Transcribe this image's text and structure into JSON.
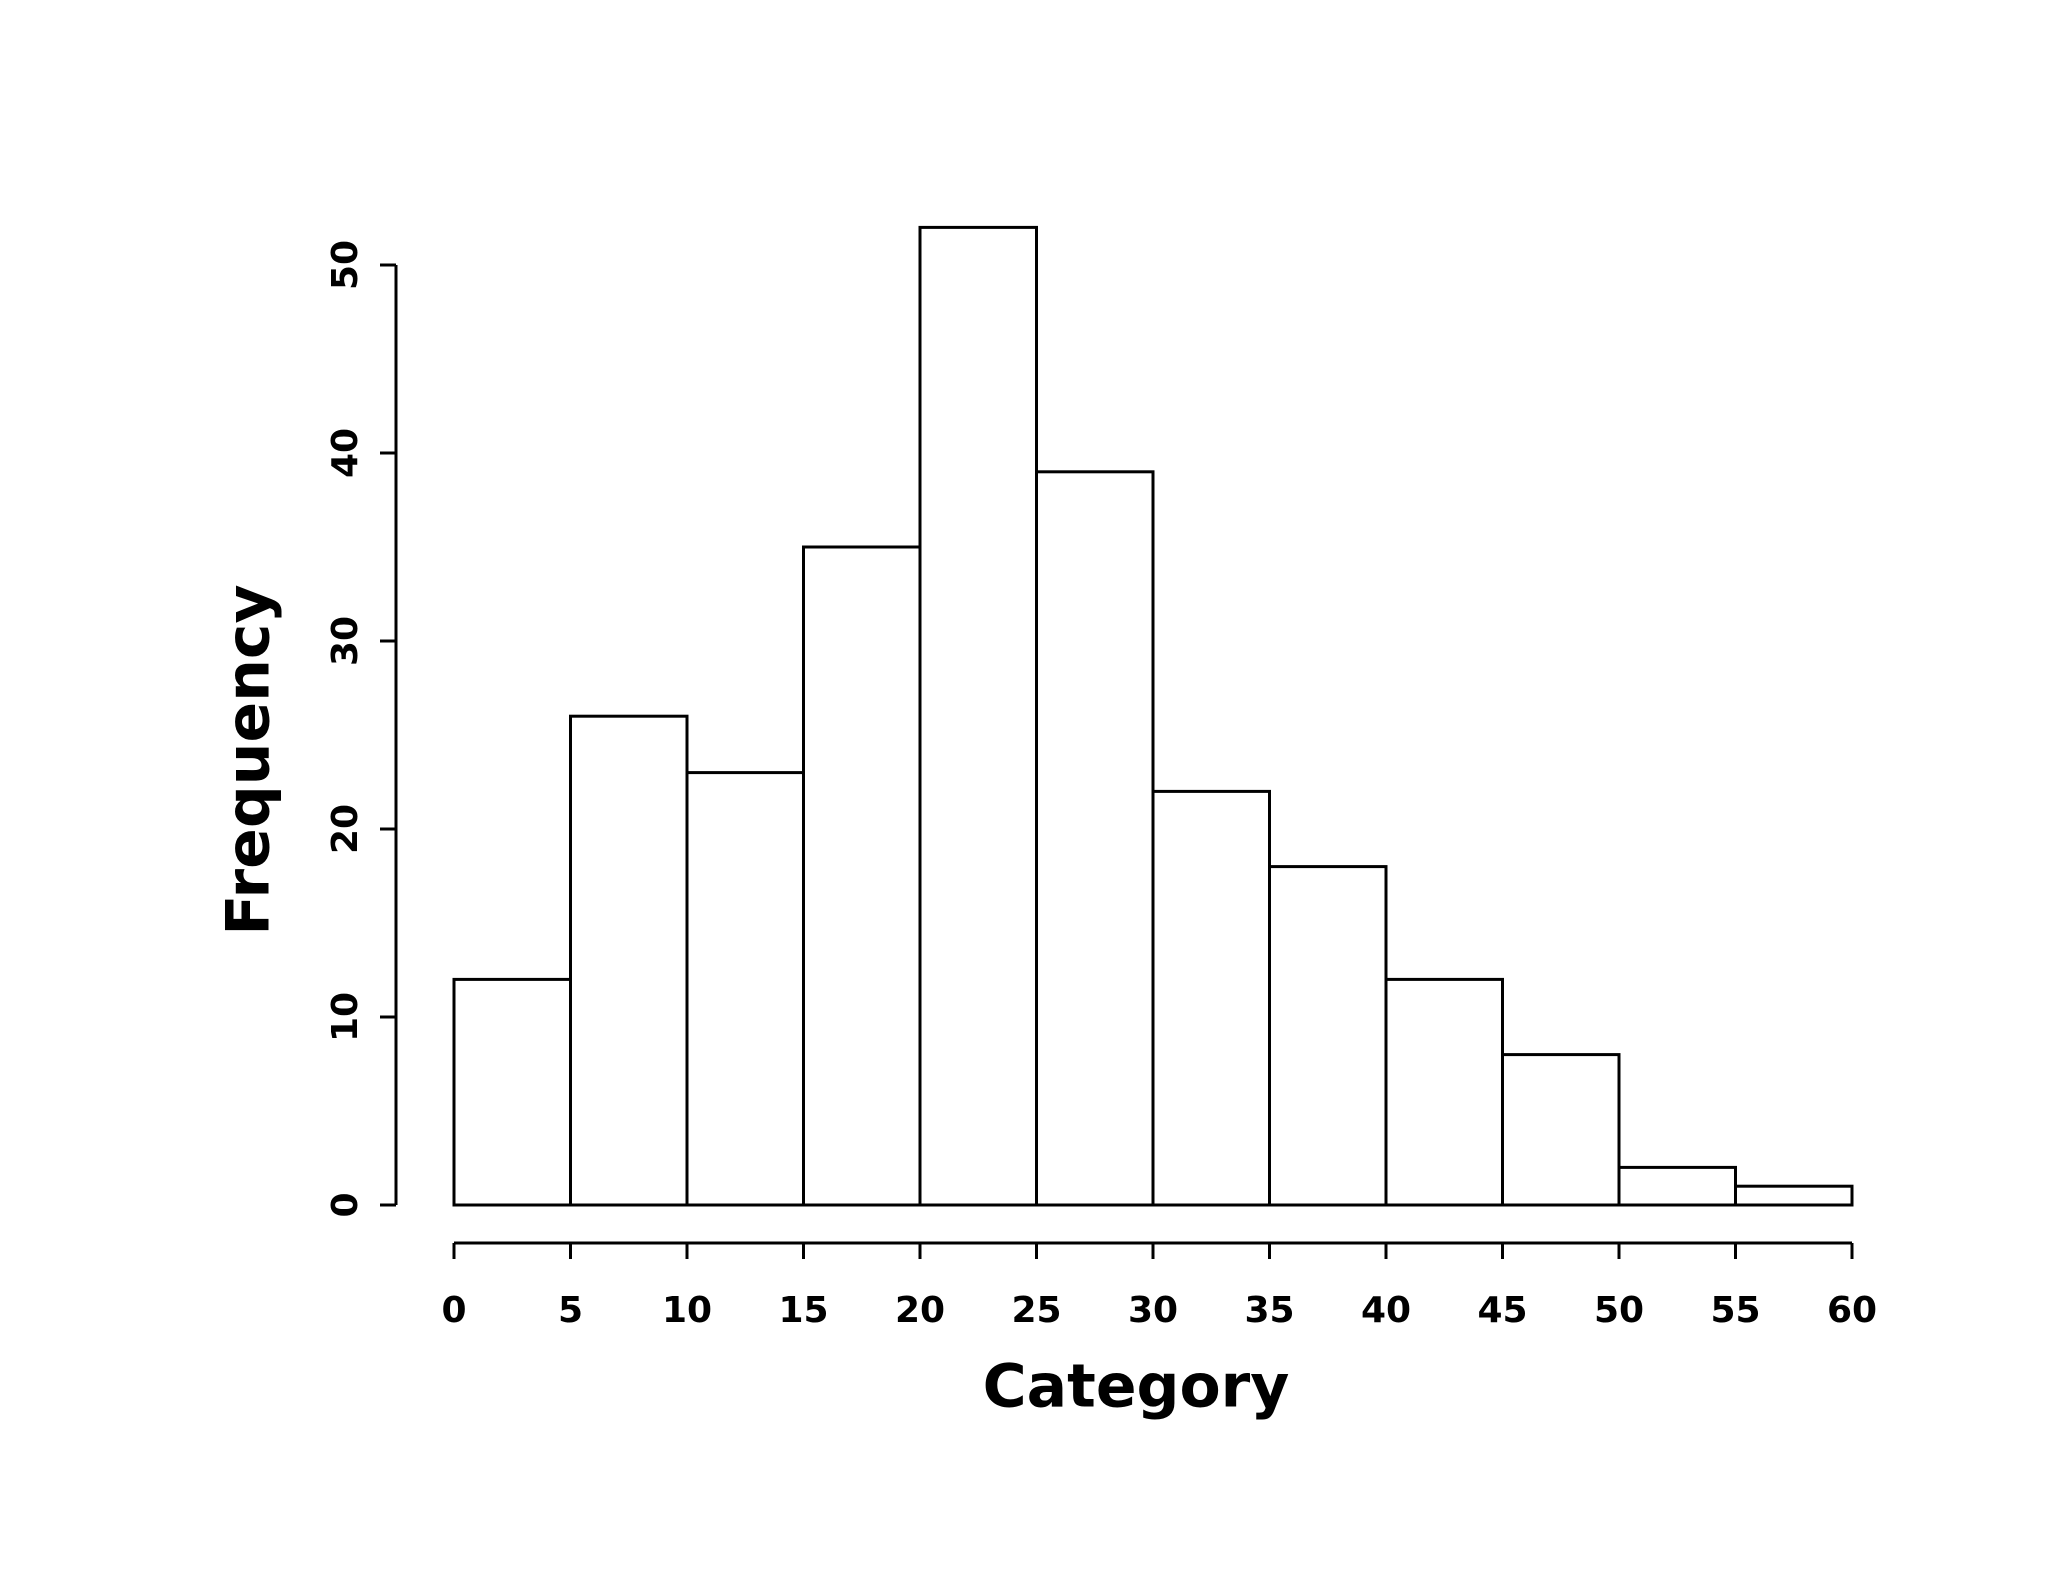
{
  "chart_data": {
    "type": "histogram",
    "x_label": "Category",
    "y_label": "Frequency",
    "bins": [
      0,
      5,
      10,
      15,
      20,
      25,
      30,
      35,
      40,
      45,
      50,
      55,
      60
    ],
    "values": [
      12,
      26,
      23,
      35,
      52,
      39,
      22,
      18,
      12,
      8,
      2,
      1
    ],
    "color": "#ffffff",
    "edge_color": "#000000",
    "xlim": [
      0,
      60
    ],
    "xticks": [
      0,
      5,
      10,
      15,
      20,
      25,
      30,
      35,
      40,
      45,
      50,
      55,
      60
    ],
    "ylim": [
      0,
      50
    ],
    "yticks": [
      0,
      10,
      20,
      30,
      40,
      50
    ],
    "grid": false
  }
}
